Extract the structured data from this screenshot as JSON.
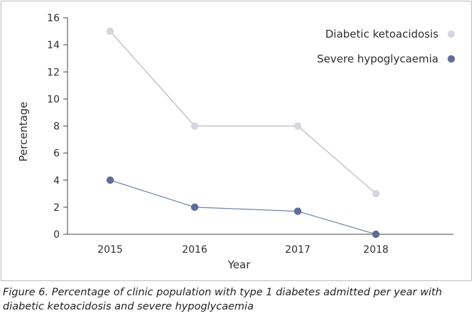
{
  "caption": "Figure 6. Percentage of clinic population with type 1 diabetes admitted per year with diabetic ketoacidosis and severe hypoglycaemia",
  "chart_data": {
    "type": "line",
    "x": [
      "2015",
      "2016",
      "2017",
      "2018"
    ],
    "xlabel": "Year",
    "ylabel": "Percentage",
    "ylim": [
      0,
      16
    ],
    "yticks": [
      0,
      2,
      4,
      6,
      8,
      10,
      12,
      14,
      16
    ],
    "grid": false,
    "legend_position": "top-right",
    "series": [
      {
        "name": "Diabetic ketoacidosis",
        "values": [
          15,
          8,
          8,
          3
        ],
        "color": "#d4d6e0",
        "line_color": "#b8b8b8"
      },
      {
        "name": "Severe hypoglycaemia",
        "values": [
          4,
          2,
          1.7,
          0
        ],
        "color": "#5f6e96",
        "line_color": "#7083a8"
      }
    ]
  }
}
